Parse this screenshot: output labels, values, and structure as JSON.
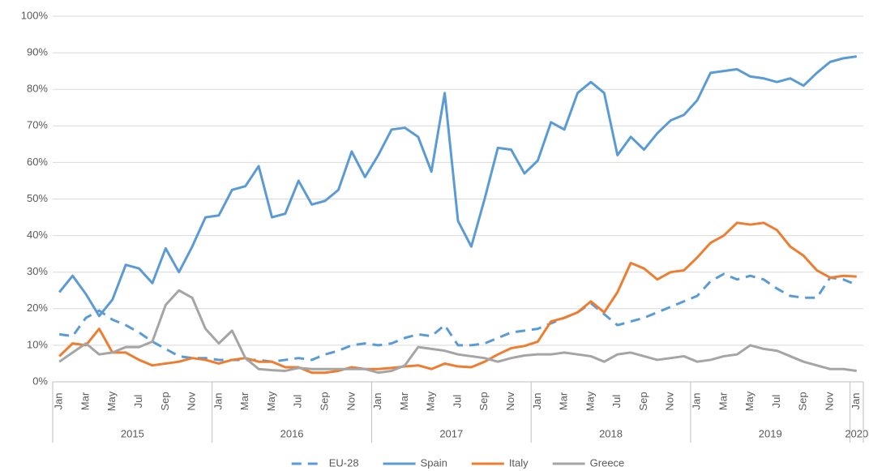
{
  "chart_data": {
    "type": "line",
    "categories": [
      "Jan",
      null,
      "Mar",
      null,
      "May",
      null,
      "Jul",
      null,
      "Sep",
      null,
      "Nov",
      null,
      "Jan",
      null,
      "Mar",
      null,
      "May",
      null,
      "Jul",
      null,
      "Sep",
      null,
      "Nov",
      null,
      "Jan",
      null,
      "Mar",
      null,
      "May",
      null,
      "Jul",
      null,
      "Sep",
      null,
      "Nov",
      null,
      "Jan",
      null,
      "Mar",
      null,
      "May",
      null,
      "Jul",
      null,
      "Sep",
      null,
      "Nov",
      null,
      "Jan",
      null,
      "Mar",
      null,
      "May",
      null,
      "Jul",
      null,
      "Sep",
      null,
      "Nov",
      null,
      "Jan"
    ],
    "category_groups": [
      {
        "label": "2015",
        "count": 12
      },
      {
        "label": "2016",
        "count": 12
      },
      {
        "label": "2017",
        "count": 12
      },
      {
        "label": "2018",
        "count": 12
      },
      {
        "label": "2019",
        "count": 12
      },
      {
        "label": "2020",
        "count": 1
      }
    ],
    "ylim": [
      0,
      100
    ],
    "yticks": [
      {
        "value": 0,
        "label": "0%"
      },
      {
        "value": 10,
        "label": "10%"
      },
      {
        "value": 20,
        "label": "20%"
      },
      {
        "value": 30,
        "label": "30%"
      },
      {
        "value": 40,
        "label": "40%"
      },
      {
        "value": 50,
        "label": "50%"
      },
      {
        "value": 60,
        "label": "60%"
      },
      {
        "value": 70,
        "label": "70%"
      },
      {
        "value": 80,
        "label": "80%"
      },
      {
        "value": 90,
        "label": "90%"
      },
      {
        "value": 100,
        "label": "100%"
      }
    ],
    "grid": true,
    "legend": "bottom",
    "series": [
      {
        "name": "EU-28",
        "color": "#5b9bd5",
        "dashed": true,
        "values": [
          13,
          12.5,
          17.5,
          19.5,
          17,
          15.5,
          13.5,
          11,
          9,
          7,
          6.5,
          6.5,
          6,
          6,
          6,
          6,
          5.5,
          6,
          6.5,
          6,
          7.5,
          8.5,
          10,
          10.5,
          10,
          10.5,
          12,
          13,
          12.5,
          15.5,
          10,
          10,
          10.5,
          12,
          13.5,
          14,
          14.5,
          16,
          17.5,
          19,
          21.5,
          18.5,
          15.5,
          16.5,
          17.5,
          19,
          20.5,
          22,
          23.5,
          27.5,
          29.5,
          28,
          29,
          28,
          25.5,
          23.5,
          23,
          23,
          28.5,
          28,
          26.5
        ]
      },
      {
        "name": "Spain",
        "color": "#5b9bd5",
        "values": [
          24.5,
          29,
          24,
          18,
          22.5,
          32,
          31,
          27,
          36.5,
          30,
          37,
          45,
          45.5,
          52.5,
          53.5,
          59,
          45,
          46,
          55,
          48.5,
          49.5,
          52.5,
          63,
          56,
          62,
          69,
          69.5,
          67,
          57.5,
          79,
          44,
          37,
          50,
          64,
          63.5,
          57,
          60.5,
          71,
          69,
          79,
          82,
          79,
          62,
          67,
          63.5,
          68,
          71.5,
          73,
          77,
          84.5,
          85,
          85.5,
          83.5,
          83,
          82,
          83,
          81,
          84.5,
          87.5,
          88.5,
          89
        ]
      },
      {
        "name": "Italy",
        "color": "#ed7d31",
        "values": [
          7,
          10.5,
          10,
          14.5,
          8,
          8,
          6,
          4.5,
          5,
          5.5,
          6.5,
          6,
          5,
          6,
          6.5,
          5.5,
          5.5,
          4,
          4,
          2.5,
          2.5,
          3,
          4,
          3.5,
          3.5,
          3.8,
          4.2,
          4.5,
          3.5,
          5,
          4.2,
          4,
          5.5,
          7.5,
          9.2,
          9.8,
          11,
          16.5,
          17.5,
          19,
          22,
          19,
          24.5,
          32.5,
          31,
          28,
          30,
          30.5,
          34,
          38,
          40,
          43.5,
          43,
          43.5,
          41.5,
          37,
          34.5,
          30.5,
          28.5,
          29,
          28.8
        ]
      },
      {
        "name": "Greece",
        "color": "#a5a5a5",
        "values": [
          5.5,
          8,
          10.5,
          7.5,
          8,
          9.5,
          9.5,
          11,
          21,
          25,
          23,
          14.5,
          10.5,
          14,
          6.5,
          3.5,
          3.2,
          3,
          3.8,
          3.5,
          3.5,
          3.5,
          3.5,
          3.5,
          2.5,
          3,
          4.5,
          9.5,
          9,
          8.5,
          7.5,
          7,
          6.5,
          5.5,
          6.5,
          7.2,
          7.5,
          7.5,
          8,
          7.5,
          7,
          5.5,
          7.5,
          8,
          7,
          6,
          6.5,
          7,
          5.5,
          6,
          7,
          7.5,
          10,
          9,
          8.5,
          7,
          5.5,
          4.5,
          3.5,
          3.5,
          3
        ]
      }
    ]
  }
}
